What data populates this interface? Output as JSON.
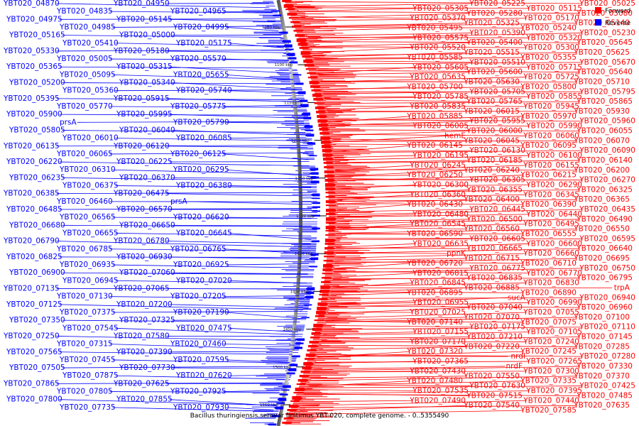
{
  "caption": "Bacillus thuringiensis serovar finitimus YBT-020, complete genome. - 0..5355490",
  "legend": [
    {
      "label": "Forward",
      "color": "#ff0000"
    },
    {
      "label": "Reverse",
      "color": "#0000ff"
    }
  ],
  "colors": {
    "forward": "#ff0000",
    "reverse": "#0000ff",
    "backbone": "#777777"
  },
  "ticks": [
    "1050 kbp",
    "1100 kbp",
    "1150 kbp",
    "1200 kbp",
    "1250 kbp",
    "1300 kbp",
    "1350 kbp",
    "1400 kbp",
    "1450 kbp",
    "1500 kbp",
    "1550 kbp"
  ],
  "left_labels": [
    "YBT020_04870",
    "YBT020_04835",
    "YBT020_04950",
    "YBT020_04965",
    "YBT020_04975",
    "YBT020_04985",
    "YBT020_05145",
    "YBT020_04995",
    "YBT020_05165",
    "YBT020_05410",
    "YBT020_05000",
    "YBT020_05175",
    "YBT020_05330",
    "YBT020_05005",
    "YBT020_05180",
    "YBT020_05570",
    "YBT020_05365",
    "YBT020_05095",
    "YBT020_05315",
    "YBT020_05655",
    "YBT020_05200",
    "YBT020_05360",
    "YBT020_05340",
    "YBT020_05740",
    "YBT020_05395",
    "YBT020_05770",
    "YBT020_05915",
    "YBT020_05775",
    "YBT020_05900",
    "prsA",
    "YBT020_05995",
    "YBT020_05790",
    "YBT020_05805",
    "YBT020_06010",
    "YBT020_06040",
    "YBT020_06085",
    "YBT020_06135",
    "YBT020_06065",
    "YBT020_06120",
    "YBT020_06125",
    "YBT020_06220",
    "YBT020_06310",
    "YBT020_06225",
    "YBT020_06295",
    "YBT020_06235",
    "YBT020_06375",
    "YBT020_06370",
    "YBT020_06380",
    "YBT020_06385",
    "YBT020_06460",
    "YBT020_06475",
    "prsA",
    "YBT020_06485",
    "YBT020_06565",
    "YBT020_06570",
    "YBT020_06620",
    "YBT020_06680",
    "YBT020_06655",
    "YBT020_06650",
    "YBT020_06645",
    "YBT020_06790",
    "YBT020_06785",
    "YBT020_06780",
    "YBT020_06765",
    "YBT020_06825",
    "YBT020_06935",
    "YBT020_06930",
    "YBT020_06925",
    "YBT020_06900",
    "YBT020_06945",
    "YBT020_07060",
    "YBT020_07020",
    "YBT020_07135",
    "YBT020_07130",
    "YBT020_07065",
    "YBT020_07205",
    "YBT020_07125",
    "YBT020_07375",
    "YBT020_07200",
    "YBT020_07190",
    "YBT020_07350",
    "YBT020_07545",
    "YBT020_07325",
    "YBT020_07475",
    "YBT020_07250",
    "YBT020_07315",
    "YBT020_07580",
    "YBT020_07460",
    "YBT020_07565",
    "YBT020_07455",
    "YBT020_07390",
    "YBT020_07595",
    "YBT020_07505",
    "YBT020_07875",
    "YBT020_07730",
    "YBT020_07620",
    "YBT020_07865",
    "YBT020_07805",
    "YBT020_07625",
    "YBT020_07925",
    "YBT020_07800",
    "YBT020_07735",
    "YBT020_07855",
    "YBT020_07930"
  ],
  "right_labels": [
    "YBT020_05025",
    "YBT020_05115",
    "YBT020_05225",
    "YBT020_05305",
    "YBT020_05080",
    "YBT020_05170",
    "YBT020_05280",
    "YBT020_05370",
    "YBT020_05140",
    "YBT020_05240",
    "YBT020_05325",
    "YBT020_05495",
    "YBT020_05230",
    "YBT020_05320",
    "YBT020_05390",
    "YBT020_05575",
    "YBT020_05645",
    "YBT020_05300",
    "YBT020_05400",
    "YBT020_05520",
    "YBT020_05625",
    "YBT020_05355",
    "YBT020_05515",
    "YBT020_05585",
    "YBT020_05670",
    "YBT020_05715",
    "YBT020_05510",
    "YBT020_05605",
    "YBT020_05640",
    "YBT020_05725",
    "YBT020_05600",
    "YBT020_05635",
    "YBT020_05710",
    "YBT020_05800",
    "YBT020_05630",
    "YBT020_05700",
    "YBT020_05795",
    "YBT020_05855",
    "YBT020_05705",
    "YBT020_05785",
    "YBT020_05865",
    "YBT020_05945",
    "YBT020_05765",
    "YBT020_05835",
    "YBT020_05930",
    "YBT020_05970",
    "YBT020_06015",
    "YBT020_05885",
    "YBT020_05960",
    "YBT020_05990",
    "YBT020_05955",
    "YBT020_06005",
    "YBT020_06055",
    "YBT020_06060",
    "YBT020_06000",
    "hemE",
    "YBT020_06070",
    "YBT020_06095",
    "YBT020_06045",
    "YBT020_06145",
    "YBT020_06090",
    "YBT020_06100",
    "YBT020_06130",
    "YBT020_06195",
    "YBT020_06140",
    "YBT020_06155",
    "YBT020_06185",
    "YBT020_06245",
    "YBT020_06200",
    "YBT020_06215",
    "YBT020_06240",
    "YBT020_06250",
    "YBT020_06270",
    "YBT020_06290",
    "YBT020_06305",
    "YBT020_06300",
    "YBT020_06325",
    "YBT020_06345",
    "YBT020_06355",
    "YBT020_06360",
    "YBT020_06365",
    "YBT020_06390",
    "YBT020_06400",
    "YBT020_06430",
    "YBT020_06435",
    "YBT020_06440",
    "YBT020_06445",
    "YBT020_06480",
    "YBT020_06490",
    "YBT020_06495",
    "YBT020_06500",
    "YBT020_06545",
    "YBT020_06550",
    "YBT020_06555",
    "YBT020_06560",
    "YBT020_06590",
    "YBT020_06595",
    "YBT020_06600",
    "YBT020_06605",
    "YBT020_06635",
    "YBT020_06640",
    "YBT020_06660",
    "YBT020_06665",
    "ppnK",
    "YBT020_06695",
    "YBT020_06710",
    "YBT020_06715",
    "YBT020_06720",
    "YBT020_06750",
    "YBT020_06770",
    "YBT020_06775",
    "YBT020_06815",
    "YBT020_06795",
    "YBT020_06830",
    "YBT020_06835",
    "YBT020_06845",
    "trpA",
    "YBT020_06890",
    "YBT020_06885",
    "YBT020_06895",
    "YBT020_06940",
    "YBT020_06990",
    "sucA",
    "YBT020_06955",
    "YBT020_06960",
    "YBT020_07055",
    "YBT020_07040",
    "YBT020_07025",
    "YBT020_07100",
    "YBT020_07075",
    "YBT020_07070",
    "YBT020_07140",
    "YBT020_07110",
    "YBT020_07105",
    "YBT020_07175",
    "YBT020_07155",
    "YBT020_07145",
    "YBT020_07240",
    "YBT020_07210",
    "YBT020_07170",
    "YBT020_07285",
    "YBT020_07245",
    "YBT020_07220",
    "YBT020_07320",
    "YBT020_07280",
    "YBT020_07265",
    "nrdI",
    "YBT020_07365",
    "YBT020_07330",
    "YBT020_07300",
    "nrdF",
    "YBT020_07430",
    "YBT020_07370",
    "YBT020_07335",
    "YBT020_07550",
    "YBT020_07480",
    "YBT020_07425",
    "YBT020_07395",
    "YBT020_07630",
    "YBT020_07535",
    "YBT020_07485",
    "YBT020_07440",
    "YBT020_07515",
    "YBT020_07490",
    "YBT020_07635",
    "YBT020_07585",
    "YBT020_07540"
  ]
}
